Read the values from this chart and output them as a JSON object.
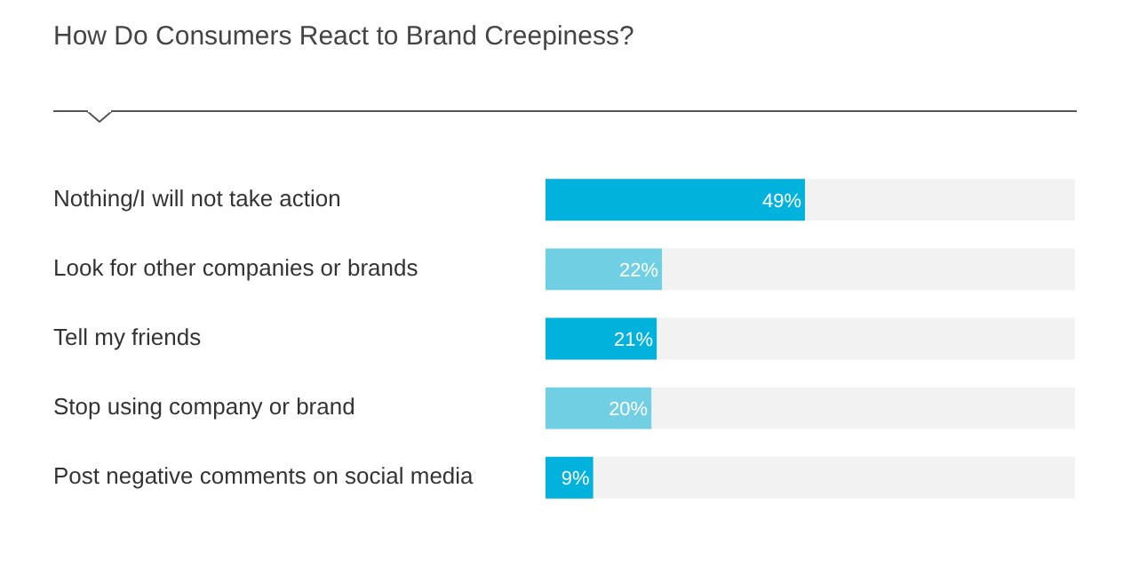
{
  "chart_data": {
    "type": "bar",
    "orientation": "horizontal",
    "title": "How Do Consumers React to Brand Creepiness?",
    "categories": [
      "Nothing/I will not take action",
      "Look for other companies or brands",
      "Tell my friends",
      "Stop using company or brand",
      "Post negative comments on social media"
    ],
    "values": [
      49,
      22,
      21,
      20,
      9
    ],
    "colors": [
      "#00b2dc",
      "#70cfe2",
      "#00b2dc",
      "#70cfe2",
      "#00b2dc"
    ],
    "value_labels": [
      "49%",
      "22%",
      "21%",
      "20%",
      "9%"
    ],
    "xlim": [
      0,
      100
    ],
    "tick_labels": "y",
    "legend": false
  }
}
